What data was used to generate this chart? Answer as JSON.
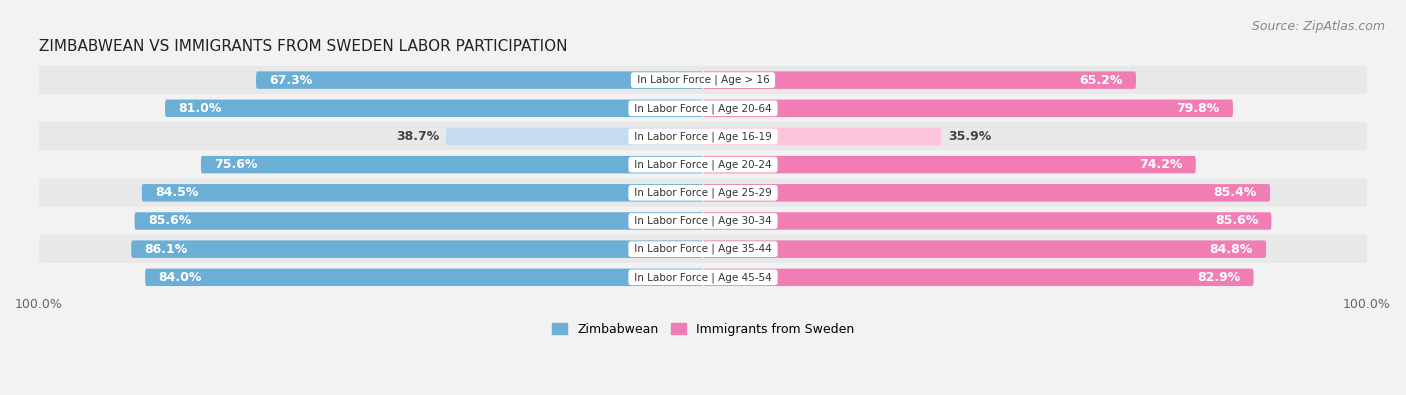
{
  "title": "ZIMBABWEAN VS IMMIGRANTS FROM SWEDEN LABOR PARTICIPATION",
  "source": "Source: ZipAtlas.com",
  "categories": [
    "In Labor Force | Age > 16",
    "In Labor Force | Age 20-64",
    "In Labor Force | Age 16-19",
    "In Labor Force | Age 20-24",
    "In Labor Force | Age 25-29",
    "In Labor Force | Age 30-34",
    "In Labor Force | Age 35-44",
    "In Labor Force | Age 45-54"
  ],
  "zimbabwean_values": [
    67.3,
    81.0,
    38.7,
    75.6,
    84.5,
    85.6,
    86.1,
    84.0
  ],
  "sweden_values": [
    65.2,
    79.8,
    35.9,
    74.2,
    85.4,
    85.6,
    84.8,
    82.9
  ],
  "zimbabwean_color": "#6baed6",
  "zimbabwean_color_light": "#c6dbef",
  "sweden_color": "#f07eb5",
  "sweden_color_light": "#fcc5dc",
  "background_color": "#f2f2f2",
  "row_bg_odd": "#e8e8e8",
  "row_bg_even": "#f2f2f2",
  "max_value": 100.0,
  "label_fontsize": 9,
  "title_fontsize": 11,
  "source_fontsize": 9,
  "cat_fontsize": 7.5
}
